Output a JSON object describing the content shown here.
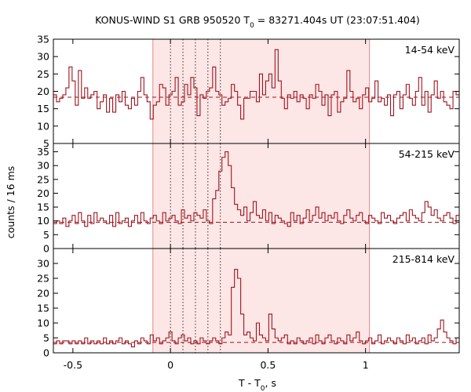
{
  "chart_data": {
    "type": "line",
    "title_main": "KONUS-WIND S1 GRB 950520 T",
    "title_sub": "0",
    "title_rest": " = 83271.404s UT (23:07:51.404)",
    "xlabel_main": "T - T",
    "xlabel_sub": "0",
    "xlabel_rest": ", s",
    "ylabel": "counts / 16 ms",
    "xlim": [
      -0.6,
      1.48
    ],
    "xticks": [
      -0.5,
      0,
      0.5,
      1
    ],
    "xtick_labels": [
      "-0.5",
      "0",
      "0.5",
      "1"
    ],
    "interval_shade": [
      -0.09,
      1.02
    ],
    "dotted_lines": [
      0,
      0.064,
      0.128,
      0.192,
      0.256
    ],
    "colors": {
      "line": "#a0141e",
      "shade": "#fde6e6",
      "shade_edge": "#e08a8a",
      "frame": "#000000"
    },
    "panels": [
      {
        "band": "14-54 keV",
        "ylim": [
          5,
          35
        ],
        "yticks": [
          5,
          10,
          15,
          20,
          25,
          30,
          35
        ],
        "background": 18.3,
        "start": -0.6,
        "bin": 0.016,
        "values": [
          19,
          17,
          18,
          19,
          21,
          27,
          23,
          16,
          26,
          18,
          21,
          18,
          19,
          20,
          15,
          17,
          19,
          14,
          18,
          14,
          19,
          17,
          20,
          16,
          15,
          18,
          16,
          20,
          24,
          19,
          17,
          12,
          16,
          17,
          22,
          21,
          16,
          19,
          20,
          24,
          16,
          17,
          22,
          19,
          24,
          21,
          13,
          19,
          18,
          20,
          21,
          27,
          20,
          19,
          16,
          17,
          18,
          22,
          20,
          16,
          12,
          18,
          18,
          20,
          20,
          17,
          25,
          19,
          23,
          25,
          21,
          32,
          23,
          18,
          15,
          19,
          18,
          20,
          17,
          19,
          18,
          15,
          19,
          18,
          22,
          20,
          16,
          19,
          13,
          19,
          20,
          14,
          17,
          18,
          26,
          20,
          17,
          18,
          15,
          19,
          21,
          17,
          18,
          23,
          17,
          18,
          16,
          19,
          13,
          19,
          20,
          15,
          19,
          22,
          18,
          16,
          20,
          24,
          16,
          20,
          14,
          19,
          23,
          18,
          20,
          17,
          16,
          15,
          20,
          19,
          17,
          21,
          16,
          18,
          15,
          19,
          14,
          21,
          20,
          18,
          17,
          19,
          22,
          18,
          17,
          20,
          16,
          19,
          13,
          21,
          18,
          17,
          20,
          15,
          23,
          20,
          18,
          16,
          25,
          17,
          13,
          19,
          17,
          21,
          20,
          15,
          18,
          20,
          23,
          19
        ]
      },
      {
        "band": "54-215 keV",
        "ylim": [
          0,
          38
        ],
        "yticks": [
          0,
          5,
          10,
          15,
          20,
          25,
          30,
          35
        ],
        "background": 9.5,
        "start": -0.6,
        "bin": 0.016,
        "values": [
          9,
          10,
          9,
          11,
          8,
          10,
          12,
          9,
          13,
          10,
          8,
          12,
          9,
          13,
          10,
          11,
          10,
          9,
          12,
          8,
          13,
          9,
          10,
          11,
          8,
          10,
          12,
          9,
          13,
          10,
          9,
          11,
          12,
          10,
          9,
          13,
          10,
          11,
          12,
          10,
          9,
          14,
          11,
          12,
          10,
          13,
          12,
          11,
          14,
          10,
          9,
          18,
          21,
          28,
          33,
          35,
          30,
          22,
          16,
          14,
          12,
          15,
          10,
          13,
          17,
          12,
          11,
          14,
          10,
          13,
          9,
          12,
          11,
          10,
          9,
          8,
          13,
          10,
          12,
          9,
          11,
          14,
          10,
          12,
          15,
          11,
          13,
          10,
          12,
          11,
          13,
          10,
          9,
          12,
          14,
          11,
          10,
          12,
          13,
          10,
          9,
          12,
          11,
          10,
          9,
          13,
          11,
          12,
          10,
          9,
          11,
          12,
          13,
          10,
          14,
          12,
          11,
          10,
          13,
          17,
          15,
          12,
          14,
          11,
          10,
          12,
          13,
          11,
          9,
          12,
          10,
          8,
          11,
          13,
          10,
          9,
          12,
          11,
          10,
          13,
          9,
          11,
          10,
          12,
          9,
          11,
          10,
          8,
          12,
          9,
          11,
          10,
          12,
          9,
          11,
          10,
          9,
          11,
          12,
          9,
          10,
          8,
          9,
          11,
          10,
          9,
          12,
          10,
          9,
          8
        ]
      },
      {
        "band": "215-814 keV",
        "ylim": [
          0,
          35
        ],
        "yticks": [
          0,
          5,
          10,
          15,
          20,
          25,
          30
        ],
        "background": 3.5,
        "start": -0.6,
        "bin": 0.016,
        "values": [
          3,
          4,
          3,
          4,
          4,
          3,
          4,
          3,
          4,
          3,
          5,
          3,
          4,
          3,
          4,
          3,
          5,
          3,
          4,
          3,
          4,
          5,
          3,
          4,
          3,
          2,
          4,
          3,
          5,
          4,
          3,
          6,
          4,
          5,
          3,
          4,
          5,
          7,
          4,
          3,
          5,
          6,
          4,
          5,
          3,
          4,
          3,
          5,
          4,
          3,
          4,
          5,
          4,
          3,
          5,
          7,
          6,
          22,
          28,
          25,
          13,
          6,
          7,
          5,
          4,
          10,
          6,
          5,
          4,
          13,
          8,
          5,
          4,
          5,
          6,
          3,
          4,
          3,
          5,
          4,
          3,
          4,
          5,
          3,
          6,
          4,
          3,
          5,
          6,
          4,
          3,
          5,
          4,
          3,
          6,
          4,
          5,
          7,
          4,
          3,
          4,
          5,
          3,
          4,
          6,
          3,
          4,
          5,
          4,
          3,
          5,
          4,
          3,
          6,
          4,
          5,
          3,
          4,
          5,
          3,
          6,
          4,
          5,
          8,
          11,
          7,
          5,
          4,
          3,
          5,
          4,
          3,
          4,
          5,
          3,
          4,
          3,
          5,
          4,
          3,
          4,
          3,
          5,
          4,
          3,
          4,
          6,
          3,
          4,
          3,
          5,
          3,
          4,
          5,
          3,
          4,
          3,
          5,
          4,
          3,
          4,
          3,
          5,
          4,
          3,
          4,
          3,
          5,
          4,
          3
        ]
      }
    ]
  }
}
